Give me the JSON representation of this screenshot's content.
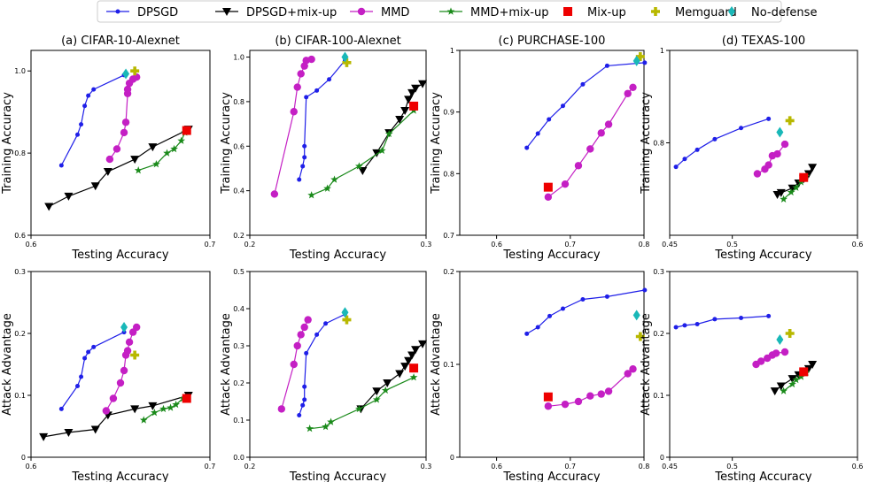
{
  "legend": [
    {
      "key": "dpsgd",
      "label": "DPSGD",
      "color": "#1f1fe8",
      "marker": "circle"
    },
    {
      "key": "dpsgd_mixup",
      "label": "DPSGD+mix-up",
      "color": "#000000",
      "marker": "triangle-down"
    },
    {
      "key": "mmd",
      "label": "MMD",
      "color": "#c41fc4",
      "marker": "circle"
    },
    {
      "key": "mmd_mixup",
      "label": "MMD+mix-up",
      "color": "#1a8a1a",
      "marker": "star"
    },
    {
      "key": "mixup",
      "label": "Mix-up",
      "color": "#ee0000",
      "marker": "square"
    },
    {
      "key": "memguard",
      "label": "Memguard",
      "color": "#b8b800",
      "marker": "plus"
    },
    {
      "key": "nodefense",
      "label": "No-defense",
      "color": "#19b8b8",
      "marker": "diamond"
    }
  ],
  "chart_data": [
    {
      "type": "line",
      "title": "(a) CIFAR-10-Alexnet",
      "xlabel": "Testing Accuracy",
      "ylabel": "Training Accuracy",
      "xlim": [
        0.6,
        0.7
      ],
      "ylim": [
        0.6,
        1.05
      ],
      "xticks": [
        "0.6",
        "0.7"
      ],
      "yticks": [
        "0.6",
        "0.8",
        "1.0"
      ],
      "xtick_values": [
        0.6,
        0.7
      ],
      "ytick_values": [
        0.6,
        0.8,
        1.0
      ],
      "series": [
        {
          "key": "dpsgd",
          "x": [
            0.617,
            0.626,
            0.628,
            0.63,
            0.632,
            0.635,
            0.652
          ],
          "y": [
            0.77,
            0.845,
            0.87,
            0.915,
            0.94,
            0.955,
            0.99
          ]
        },
        {
          "key": "dpsgd_mixup",
          "x": [
            0.61,
            0.621,
            0.636,
            0.643,
            0.658,
            0.668,
            0.688
          ],
          "y": [
            0.67,
            0.695,
            0.72,
            0.755,
            0.785,
            0.815,
            0.858
          ]
        },
        {
          "key": "mmd",
          "x": [
            0.644,
            0.648,
            0.652,
            0.653,
            0.654,
            0.654,
            0.655,
            0.657,
            0.659
          ],
          "y": [
            0.785,
            0.81,
            0.85,
            0.875,
            0.945,
            0.955,
            0.97,
            0.98,
            0.985
          ]
        },
        {
          "key": "mmd_mixup",
          "x": [
            0.66,
            0.67,
            0.676,
            0.68,
            0.684,
            0.686
          ],
          "y": [
            0.758,
            0.773,
            0.8,
            0.81,
            0.83,
            0.85
          ]
        },
        {
          "key": "mixup",
          "x": [
            0.687
          ],
          "y": [
            0.855
          ]
        },
        {
          "key": "memguard",
          "x": [
            0.658
          ],
          "y": [
            1.0
          ]
        },
        {
          "key": "nodefense",
          "x": [
            0.653
          ],
          "y": [
            0.993
          ]
        }
      ]
    },
    {
      "type": "line",
      "title": "(b) CIFAR-100-Alexnet",
      "xlabel": "Testing Accuracy",
      "ylabel": "Training Accuracy",
      "xlim": [
        0.2,
        0.3
      ],
      "ylim": [
        0.2,
        1.03
      ],
      "xticks": [
        "0.2",
        "0.3"
      ],
      "yticks": [
        "0.2",
        "0.4",
        "0.6",
        "0.8",
        "1.0"
      ],
      "xtick_values": [
        0.2,
        0.3
      ],
      "ytick_values": [
        0.2,
        0.4,
        0.6,
        0.8,
        1.0
      ],
      "series": [
        {
          "key": "dpsgd",
          "x": [
            0.228,
            0.23,
            0.231,
            0.231,
            0.232,
            0.238,
            0.245,
            0.254
          ],
          "y": [
            0.45,
            0.51,
            0.55,
            0.6,
            0.82,
            0.85,
            0.9,
            0.985
          ]
        },
        {
          "key": "dpsgd_mixup",
          "x": [
            0.264,
            0.272,
            0.279,
            0.285,
            0.288,
            0.29,
            0.292,
            0.294,
            0.298
          ],
          "y": [
            0.49,
            0.57,
            0.66,
            0.72,
            0.76,
            0.81,
            0.84,
            0.86,
            0.88
          ]
        },
        {
          "key": "mmd",
          "x": [
            0.214,
            0.225,
            0.227,
            0.229,
            0.231,
            0.232,
            0.235
          ],
          "y": [
            0.385,
            0.755,
            0.865,
            0.925,
            0.96,
            0.985,
            0.99
          ]
        },
        {
          "key": "mmd_mixup",
          "x": [
            0.235,
            0.244,
            0.248,
            0.262,
            0.275,
            0.279,
            0.293
          ],
          "y": [
            0.38,
            0.41,
            0.45,
            0.51,
            0.58,
            0.655,
            0.76
          ]
        },
        {
          "key": "mixup",
          "x": [
            0.293
          ],
          "y": [
            0.78
          ]
        },
        {
          "key": "memguard",
          "x": [
            0.255
          ],
          "y": [
            0.975
          ]
        },
        {
          "key": "nodefense",
          "x": [
            0.254
          ],
          "y": [
            1.0
          ]
        }
      ]
    },
    {
      "type": "line",
      "title": "(c) PURCHASE-100",
      "xlabel": "Testing Accuracy",
      "ylabel": "Training Accuracy",
      "xlim": [
        0.55,
        0.8
      ],
      "ylim": [
        0.7,
        1.0
      ],
      "xticks": [
        "0.6",
        "0.7",
        "0.8"
      ],
      "yticks": [
        "0.7",
        "0.8",
        "0.9",
        "1"
      ],
      "xtick_values": [
        0.6,
        0.7,
        0.8
      ],
      "ytick_values": [
        0.7,
        0.8,
        0.9,
        1.0
      ],
      "series": [
        {
          "key": "dpsgd",
          "x": [
            0.641,
            0.656,
            0.671,
            0.69,
            0.717,
            0.75,
            0.801
          ],
          "y": [
            0.842,
            0.865,
            0.888,
            0.91,
            0.945,
            0.975,
            0.98
          ]
        },
        {
          "key": "mmd",
          "x": [
            0.67,
            0.693,
            0.711,
            0.727,
            0.742,
            0.752,
            0.778,
            0.785
          ],
          "y": [
            0.762,
            0.783,
            0.813,
            0.84,
            0.866,
            0.88,
            0.93,
            0.94
          ]
        },
        {
          "key": "mixup",
          "x": [
            0.67
          ],
          "y": [
            0.778
          ]
        },
        {
          "key": "memguard",
          "x": [
            0.795
          ],
          "y": [
            0.99
          ]
        },
        {
          "key": "nodefense",
          "x": [
            0.79
          ],
          "y": [
            0.983
          ]
        }
      ]
    },
    {
      "type": "line",
      "title": "(d) TEXAS-100",
      "xlabel": "Testing Accuracy",
      "ylabel": "Training Accuracy",
      "xlim": [
        0.45,
        0.6
      ],
      "ylim": [
        0.6,
        1.0
      ],
      "xticks": [
        "0.45",
        "0.5",
        "0.6"
      ],
      "yticks": [
        "0.8",
        "1"
      ],
      "xtick_values": [
        0.45,
        0.5,
        0.6
      ],
      "ytick_values": [
        0.8,
        1.0
      ],
      "series": [
        {
          "key": "dpsgd",
          "x": [
            0.455,
            0.462,
            0.472,
            0.486,
            0.507,
            0.529
          ],
          "y": [
            0.748,
            0.765,
            0.785,
            0.808,
            0.832,
            0.852
          ]
        },
        {
          "key": "dpsgd_mixup",
          "x": [
            0.536,
            0.539,
            0.548,
            0.553,
            0.557,
            0.561,
            0.564
          ],
          "y": [
            0.688,
            0.692,
            0.702,
            0.713,
            0.722,
            0.733,
            0.747
          ]
        },
        {
          "key": "mmd",
          "x": [
            0.52,
            0.526,
            0.529,
            0.532,
            0.536,
            0.542
          ],
          "y": [
            0.733,
            0.743,
            0.752,
            0.772,
            0.776,
            0.797
          ]
        },
        {
          "key": "mmd_mixup",
          "x": [
            0.541,
            0.547,
            0.551,
            0.555,
            0.559
          ],
          "y": [
            0.678,
            0.693,
            0.703,
            0.715,
            0.728
          ]
        },
        {
          "key": "mixup",
          "x": [
            0.557
          ],
          "y": [
            0.725
          ]
        },
        {
          "key": "memguard",
          "x": [
            0.546
          ],
          "y": [
            0.848
          ]
        },
        {
          "key": "nodefense",
          "x": [
            0.538
          ],
          "y": [
            0.823
          ]
        }
      ]
    },
    {
      "type": "line",
      "title": "",
      "xlabel": "Testing Accuracy",
      "ylabel": "Attack Advantage",
      "xlim": [
        0.6,
        0.7
      ],
      "ylim": [
        0.0,
        0.3
      ],
      "xticks": [
        "0.6",
        "0.7"
      ],
      "yticks": [
        "0",
        "0.1",
        "0.2",
        "0.3"
      ],
      "xtick_values": [
        0.6,
        0.7
      ],
      "ytick_values": [
        0.0,
        0.1,
        0.2,
        0.3
      ],
      "series": [
        {
          "key": "dpsgd",
          "x": [
            0.617,
            0.626,
            0.628,
            0.63,
            0.632,
            0.635,
            0.652
          ],
          "y": [
            0.078,
            0.115,
            0.13,
            0.16,
            0.17,
            0.178,
            0.202
          ]
        },
        {
          "key": "dpsgd_mixup",
          "x": [
            0.607,
            0.621,
            0.636,
            0.643,
            0.658,
            0.668,
            0.688
          ],
          "y": [
            0.033,
            0.04,
            0.045,
            0.068,
            0.078,
            0.083,
            0.1
          ]
        },
        {
          "key": "mmd",
          "x": [
            0.642,
            0.646,
            0.65,
            0.652,
            0.653,
            0.654,
            0.655,
            0.657,
            0.659
          ],
          "y": [
            0.075,
            0.095,
            0.12,
            0.14,
            0.165,
            0.172,
            0.186,
            0.202,
            0.21
          ]
        },
        {
          "key": "mmd_mixup",
          "x": [
            0.663,
            0.669,
            0.674,
            0.678,
            0.681,
            0.685
          ],
          "y": [
            0.06,
            0.072,
            0.078,
            0.08,
            0.085,
            0.095
          ]
        },
        {
          "key": "mixup",
          "x": [
            0.687
          ],
          "y": [
            0.095
          ]
        },
        {
          "key": "memguard",
          "x": [
            0.658
          ],
          "y": [
            0.165
          ]
        },
        {
          "key": "nodefense",
          "x": [
            0.652
          ],
          "y": [
            0.21
          ]
        }
      ]
    },
    {
      "type": "line",
      "title": "",
      "xlabel": "Testing Accuracy",
      "ylabel": "Attack Advantage",
      "xlim": [
        0.2,
        0.3
      ],
      "ylim": [
        0.0,
        0.5
      ],
      "xticks": [
        "0.2",
        "0.3"
      ],
      "yticks": [
        "0.0",
        "0.1",
        "0.2",
        "0.3",
        "0.4",
        "0.5"
      ],
      "xtick_values": [
        0.2,
        0.3
      ],
      "ytick_values": [
        0.0,
        0.1,
        0.2,
        0.3,
        0.4,
        0.5
      ],
      "series": [
        {
          "key": "dpsgd",
          "x": [
            0.228,
            0.23,
            0.231,
            0.231,
            0.232,
            0.238,
            0.243,
            0.254
          ],
          "y": [
            0.113,
            0.14,
            0.155,
            0.19,
            0.28,
            0.33,
            0.36,
            0.385
          ]
        },
        {
          "key": "dpsgd_mixup",
          "x": [
            0.263,
            0.272,
            0.278,
            0.285,
            0.288,
            0.29,
            0.292,
            0.294,
            0.298
          ],
          "y": [
            0.13,
            0.178,
            0.2,
            0.225,
            0.245,
            0.26,
            0.275,
            0.29,
            0.305
          ]
        },
        {
          "key": "mmd",
          "x": [
            0.218,
            0.225,
            0.227,
            0.229,
            0.231,
            0.233
          ],
          "y": [
            0.13,
            0.25,
            0.3,
            0.33,
            0.35,
            0.37
          ]
        },
        {
          "key": "mmd_mixup",
          "x": [
            0.234,
            0.243,
            0.246,
            0.262,
            0.272,
            0.277,
            0.293
          ],
          "y": [
            0.077,
            0.082,
            0.095,
            0.13,
            0.155,
            0.18,
            0.215
          ]
        },
        {
          "key": "mixup",
          "x": [
            0.293
          ],
          "y": [
            0.24
          ]
        },
        {
          "key": "memguard",
          "x": [
            0.255
          ],
          "y": [
            0.37
          ]
        },
        {
          "key": "nodefense",
          "x": [
            0.254
          ],
          "y": [
            0.39
          ]
        }
      ]
    },
    {
      "type": "line",
      "title": "",
      "xlabel": "Testing Accuracy",
      "ylabel": "Attack Advantage",
      "xlim": [
        0.55,
        0.8
      ],
      "ylim": [
        0.0,
        0.2
      ],
      "xticks": [
        "0.6",
        "0.7",
        "0.8"
      ],
      "yticks": [
        "0",
        "0.1",
        "0.2"
      ],
      "xtick_values": [
        0.6,
        0.7,
        0.8
      ],
      "ytick_values": [
        0.0,
        0.1,
        0.2
      ],
      "series": [
        {
          "key": "dpsgd",
          "x": [
            0.641,
            0.656,
            0.672,
            0.69,
            0.717,
            0.75,
            0.801
          ],
          "y": [
            0.133,
            0.14,
            0.152,
            0.16,
            0.17,
            0.173,
            0.18
          ]
        },
        {
          "key": "mmd",
          "x": [
            0.67,
            0.693,
            0.711,
            0.727,
            0.742,
            0.752,
            0.778,
            0.785
          ],
          "y": [
            0.055,
            0.057,
            0.06,
            0.066,
            0.068,
            0.071,
            0.09,
            0.095
          ]
        },
        {
          "key": "mixup",
          "x": [
            0.67
          ],
          "y": [
            0.065
          ]
        },
        {
          "key": "memguard",
          "x": [
            0.795
          ],
          "y": [
            0.13
          ]
        },
        {
          "key": "nodefense",
          "x": [
            0.79
          ],
          "y": [
            0.153
          ]
        }
      ]
    },
    {
      "type": "line",
      "title": "",
      "xlabel": "Testing Accuracy",
      "ylabel": "Attack Advantage",
      "xlim": [
        0.45,
        0.6
      ],
      "ylim": [
        0.0,
        0.3
      ],
      "xticks": [
        "0.45",
        "0.5",
        "0.6"
      ],
      "yticks": [
        "0",
        "0.1",
        "0.2",
        "0.3"
      ],
      "xtick_values": [
        0.45,
        0.5,
        0.6
      ],
      "ytick_values": [
        0.0,
        0.1,
        0.2,
        0.3
      ],
      "series": [
        {
          "key": "dpsgd",
          "x": [
            0.455,
            0.462,
            0.472,
            0.486,
            0.507,
            0.529
          ],
          "y": [
            0.21,
            0.213,
            0.215,
            0.223,
            0.225,
            0.228
          ]
        },
        {
          "key": "dpsgd_mixup",
          "x": [
            0.534,
            0.539,
            0.548,
            0.553,
            0.557,
            0.561,
            0.564
          ],
          "y": [
            0.107,
            0.115,
            0.127,
            0.133,
            0.137,
            0.143,
            0.15
          ]
        },
        {
          "key": "mmd",
          "x": [
            0.519,
            0.523,
            0.528,
            0.532,
            0.535,
            0.542
          ],
          "y": [
            0.15,
            0.155,
            0.16,
            0.165,
            0.168,
            0.17
          ]
        },
        {
          "key": "mmd_mixup",
          "x": [
            0.541,
            0.548,
            0.551,
            0.555,
            0.559
          ],
          "y": [
            0.107,
            0.118,
            0.125,
            0.13,
            0.137
          ]
        },
        {
          "key": "mixup",
          "x": [
            0.557
          ],
          "y": [
            0.138
          ]
        },
        {
          "key": "memguard",
          "x": [
            0.546
          ],
          "y": [
            0.2
          ]
        },
        {
          "key": "nodefense",
          "x": [
            0.538
          ],
          "y": [
            0.19
          ]
        }
      ]
    }
  ]
}
